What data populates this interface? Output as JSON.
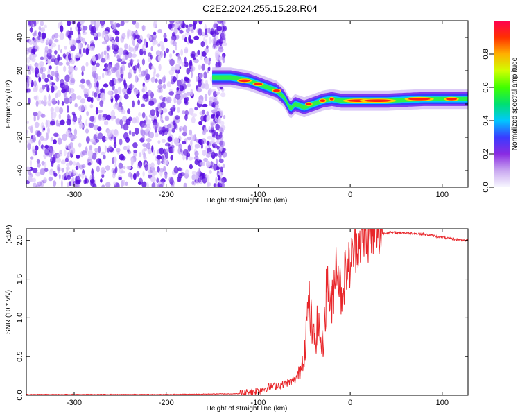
{
  "title": "C2E2.2024.255.15.28.R04",
  "colors": {
    "snr_line": "#e8262a",
    "noise": "#6a1de0",
    "axis": "#000000"
  },
  "chart_data": [
    {
      "type": "heatmap",
      "xlabel": "Height of straight line (km)",
      "ylabel": "Frequency (Hz)",
      "xlim": [
        -352,
        128
      ],
      "ylim": [
        -50,
        50
      ],
      "xticks": [
        "-300",
        "-200",
        "-100",
        "0",
        "100"
      ],
      "yticks": [
        "-40",
        "-20",
        "0",
        "20",
        "40"
      ],
      "colorbar": {
        "label": "Normalized spectral amplitude",
        "ticks": [
          "0.0",
          "0.2",
          "0.4",
          "0.6",
          "0.8"
        ],
        "range": [
          0,
          1
        ]
      },
      "ridge": [
        {
          "x": -150,
          "y": 16
        },
        {
          "x": -130,
          "y": 16
        },
        {
          "x": -110,
          "y": 14
        },
        {
          "x": -95,
          "y": 11
        },
        {
          "x": -80,
          "y": 8
        },
        {
          "x": -72,
          "y": 4
        },
        {
          "x": -65,
          "y": -3
        },
        {
          "x": -60,
          "y": 0
        },
        {
          "x": -50,
          "y": -2
        },
        {
          "x": -40,
          "y": 0
        },
        {
          "x": -30,
          "y": 2
        },
        {
          "x": -20,
          "y": 3
        },
        {
          "x": -10,
          "y": 2
        },
        {
          "x": 0,
          "y": 2
        },
        {
          "x": 40,
          "y": 2
        },
        {
          "x": 80,
          "y": 3
        },
        {
          "x": 100,
          "y": 3
        },
        {
          "x": 128,
          "y": 3
        }
      ],
      "noise_region": [
        -352,
        -150
      ]
    },
    {
      "type": "line",
      "xlabel": "Height of straight line (km)",
      "ylabel": "SNR (10 * v/v)",
      "multiplier": "(x10⁴)",
      "xlim": [
        -352,
        128
      ],
      "ylim": [
        0,
        2.15
      ],
      "xticks": [
        "-300",
        "-200",
        "-100",
        "0",
        "100"
      ],
      "yticks": [
        "0.0",
        "0.5",
        "1.0",
        "1.5",
        "2.0"
      ],
      "series": [
        {
          "x": [
            -352,
            -200,
            -120,
            -100,
            -90,
            -80,
            -70,
            -60,
            -55,
            -50,
            -45,
            -40,
            -35,
            -30,
            -25,
            -20,
            -15,
            -10,
            -5,
            0,
            5,
            10,
            20,
            30,
            40,
            50,
            60,
            70,
            80,
            90,
            100,
            110,
            128
          ],
          "values": [
            0.01,
            0.01,
            0.02,
            0.06,
            0.1,
            0.12,
            0.15,
            0.2,
            0.3,
            0.55,
            1.2,
            0.7,
            0.9,
            0.6,
            1.5,
            1.1,
            1.8,
            1.3,
            1.6,
            1.7,
            1.9,
            2.0,
            2.05,
            2.08,
            2.1,
            2.1,
            2.1,
            2.09,
            2.08,
            2.06,
            2.04,
            2.02,
            2.0
          ]
        }
      ]
    }
  ]
}
